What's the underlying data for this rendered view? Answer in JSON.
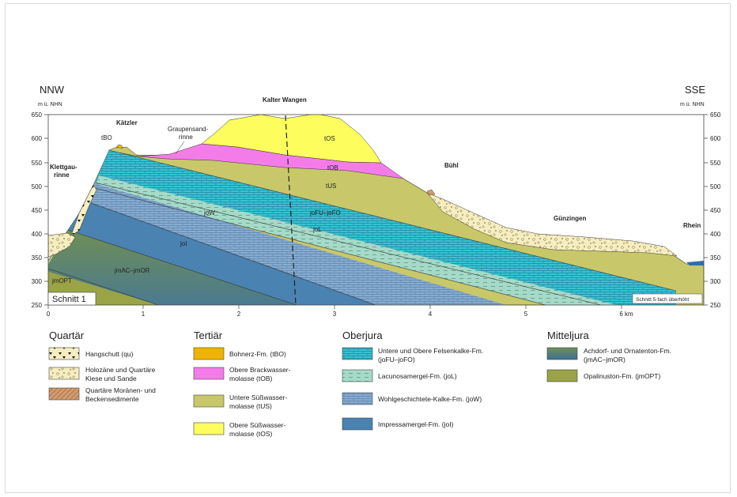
{
  "section": {
    "dir_left": "NNW",
    "dir_right": "SSE",
    "unit_left": "m ü. NHN",
    "unit_right": "m ü. NHN",
    "title_box": "Schnitt 1",
    "exaggeration_note": "Schnitt 5-fach überhöht",
    "y_ticks": [
      "650",
      "600",
      "550",
      "500",
      "450",
      "400",
      "350",
      "300",
      "250"
    ],
    "x_ticks": [
      "0",
      "1",
      "2",
      "3",
      "4",
      "5",
      "6 km"
    ]
  },
  "places": {
    "kaetzler": "Kätzler",
    "kalter_wangen": "Kalter Wangen",
    "buehl": "Bühl",
    "guenzingen": "Günzingen",
    "rhein": "Rhein",
    "klettgau_1": "Klettgau-",
    "klettgau_2": "rinne",
    "graupensand_1": "Graupensand-",
    "graupensand_2": "rinne"
  },
  "unit_labels": {
    "tBO": "tBO",
    "tOS": "tOS",
    "tOB": "tOB",
    "tUS": "tUS",
    "joW": "joW",
    "joFU_joFO": "joFU–joFO",
    "joL": "joL",
    "joI": "joI",
    "jmAC_jmOR": "jmAC–jmOR",
    "jmOPT": "jmOPT"
  },
  "colors": {
    "tOS": "#fdfd5e",
    "tOB": "#f47ce8",
    "tUS": "#c8c86a",
    "tBO": "#f0b400",
    "joFU_joFO": "#35c3d4",
    "joL": "#a6dac8",
    "joW": "#86acd2",
    "joI": "#4a82b2",
    "jmAC_jmOR": "#6f8e55",
    "jmOPT": "#9aa446",
    "holozaen": "#f6eec0",
    "moraenen": "#d29b6e"
  },
  "legend": {
    "quartaer": {
      "heading": "Quartär",
      "items": [
        {
          "label": "Hangschutt (qu)"
        },
        {
          "label1": "Holozäne und Quartäre",
          "label2": "Kiese und Sande"
        },
        {
          "label1": "Quartäre Moränen- und",
          "label2": "Beckensedimente"
        }
      ]
    },
    "tertiaer": {
      "heading": "Tertiär",
      "items": [
        {
          "label": "Bohnerz-Fm. (tBO)"
        },
        {
          "label1": "Obere Brackwasser-",
          "label2": "molasse (tOB)"
        },
        {
          "label1": "Untere Süßwasser-",
          "label2": "molasse (tUS)"
        },
        {
          "label1": "Obere Süßwasser-",
          "label2": "molasse (tOS)"
        }
      ]
    },
    "oberjura": {
      "heading": "Oberjura",
      "items": [
        {
          "label1": "Untere und Obere Felsenkalke-Fm.",
          "label2": "(joFU–joFO)"
        },
        {
          "label": "Lacunosamergel-Fm. (joL)"
        },
        {
          "label": "Wohlgeschichtete-Kalke-Fm. (joW)"
        },
        {
          "label": "Impressamergel-Fm. (joI)"
        }
      ]
    },
    "mitteljura": {
      "heading": "Mitteljura",
      "items": [
        {
          "label1": "Achdorf- und Ornatenton-Fm.",
          "label2": "(jmAC–jmOR)"
        },
        {
          "label": "Opalinuston-Fm. (jmOPT)"
        }
      ]
    }
  }
}
